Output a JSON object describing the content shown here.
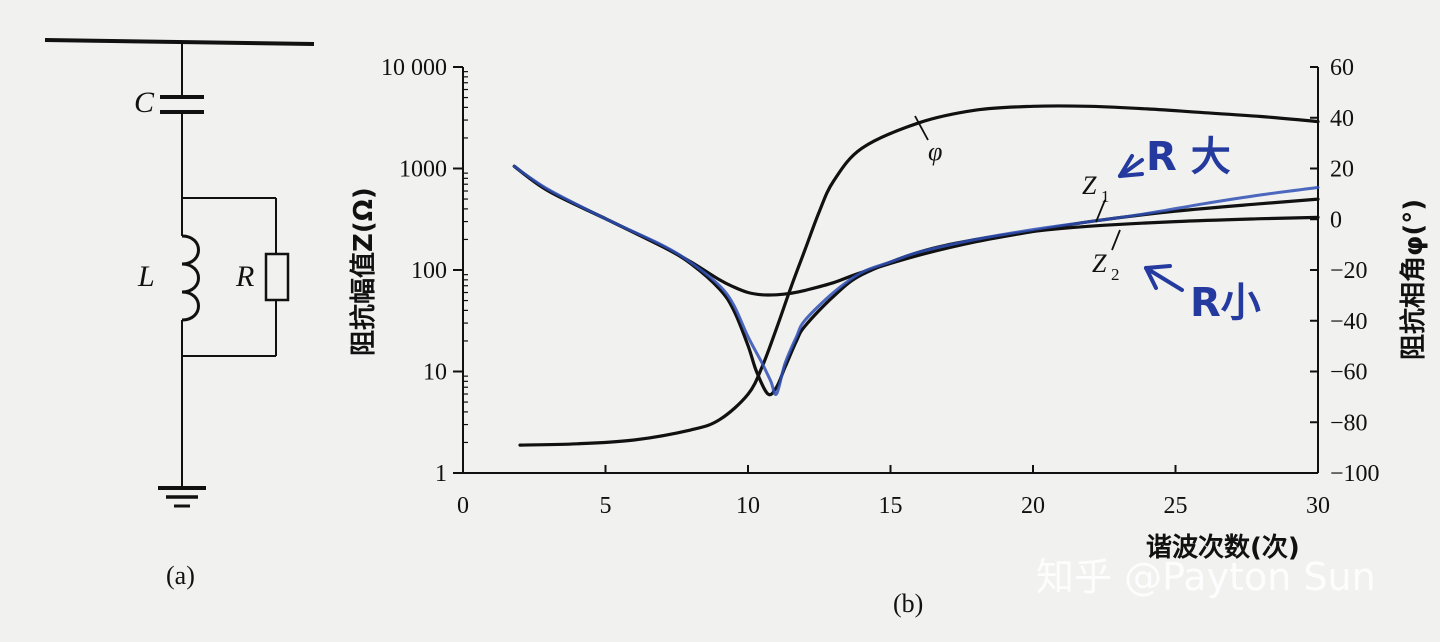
{
  "circuit": {
    "labels": {
      "C": "C",
      "L": "L",
      "R": "R"
    },
    "caption": "(a)"
  },
  "chart_data": {
    "type": "line",
    "caption": "(b)",
    "xlabel": "谐波次数(次)",
    "ylabel_left": "阻抗幅值Z(Ω)",
    "ylabel_right": "阻抗相角φ(°)",
    "x_range": [
      0,
      30
    ],
    "x_ticks": [
      0,
      5,
      10,
      15,
      20,
      25,
      30
    ],
    "x_tick_labels": [
      "0",
      "5",
      "10",
      "15",
      "20",
      "25",
      "30"
    ],
    "y_left_scale": "log",
    "y_left_range": [
      1,
      10000
    ],
    "y_left_ticks": [
      1,
      10,
      100,
      1000,
      10000
    ],
    "y_left_tick_labels": [
      "1",
      "10",
      "100",
      "1000",
      "10 000"
    ],
    "y_right_range": [
      -100,
      60
    ],
    "y_right_ticks": [
      -100,
      -80,
      -60,
      -40,
      -20,
      0,
      20,
      40,
      60
    ],
    "y_right_tick_labels": [
      "−100",
      "−80",
      "−60",
      "−40",
      "−20",
      "0",
      "20",
      "40",
      "60"
    ],
    "series": [
      {
        "name": "φ",
        "axis": "right",
        "color": "#111111",
        "x": [
          2,
          4,
          6,
          8,
          9,
          10,
          10.5,
          11,
          11.5,
          12,
          12.5,
          13,
          14,
          16,
          18,
          20,
          22,
          24,
          26,
          28,
          30
        ],
        "y": [
          -89,
          -88.5,
          -87,
          -83,
          -79,
          -69,
          -58,
          -43,
          -27,
          -12,
          3,
          15,
          28,
          38,
          43,
          44.5,
          44.5,
          43.5,
          42,
          40.5,
          38.5
        ]
      },
      {
        "name": "Z1",
        "axis": "left",
        "color": "#111111",
        "x": [
          1.8,
          3,
          5,
          7,
          8,
          9,
          9.5,
          10,
          10.5,
          11,
          11.5,
          12,
          13,
          14,
          16,
          18,
          20,
          22,
          25,
          28,
          30
        ],
        "y": [
          1050,
          600,
          320,
          170,
          120,
          80,
          68,
          60,
          57,
          57,
          59,
          63,
          75,
          95,
          140,
          190,
          240,
          300,
          380,
          450,
          500
        ]
      },
      {
        "name": "Z2",
        "axis": "left",
        "color": "#111111",
        "x": [
          1.8,
          3,
          5,
          7,
          8,
          9,
          9.5,
          10,
          10.3,
          10.7,
          11,
          11.3,
          11.7,
          12,
          13,
          14,
          16,
          18,
          20,
          22,
          25,
          28,
          30
        ],
        "y": [
          1050,
          600,
          320,
          170,
          115,
          65,
          40,
          18,
          10,
          6,
          7,
          11,
          20,
          28,
          55,
          90,
          150,
          200,
          240,
          270,
          300,
          320,
          330
        ]
      },
      {
        "name": "",
        "axis": "left",
        "color": "#2f4fb5",
        "x": [
          1.8,
          3,
          5,
          7,
          8,
          9,
          9.5,
          10,
          10.5,
          10.8,
          11,
          11.3,
          11.7,
          12,
          13,
          14,
          15,
          16,
          18,
          20,
          22,
          24,
          26,
          28,
          30
        ],
        "y": [
          1050,
          620,
          320,
          175,
          118,
          70,
          45,
          22,
          12,
          8,
          6,
          12,
          22,
          32,
          60,
          95,
          120,
          150,
          200,
          250,
          300,
          360,
          450,
          550,
          650
        ]
      }
    ],
    "annotations": {
      "phi": "φ",
      "z1": "Z",
      "z1_sub": "1",
      "z2": "Z",
      "z2_sub": "2",
      "hand_big": "R 大",
      "hand_small": "R小"
    }
  },
  "watermark": "知乎 @Payton Sun"
}
